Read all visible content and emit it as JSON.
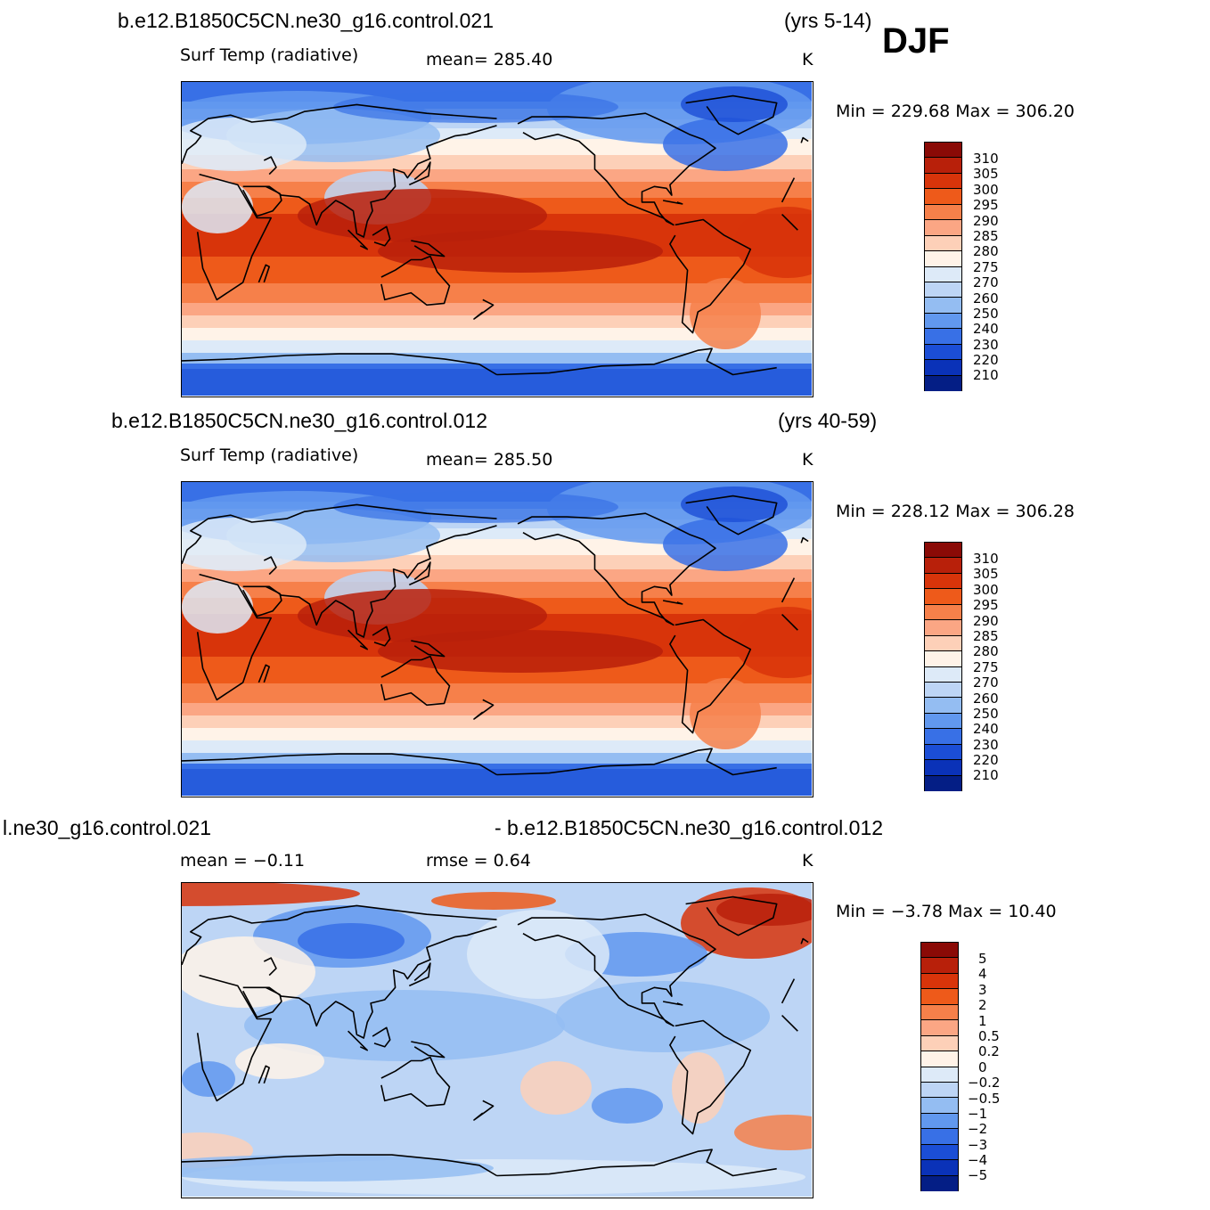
{
  "figure": {
    "season": "DJF"
  },
  "panels": [
    {
      "case_title": "b.e12.B1850C5CN.ne30_g16.control.021",
      "years": "(yrs 5-14)",
      "left_text": "Surf Temp  (radiative)",
      "mid_text": "mean=  285.40",
      "units": "K",
      "minmax": "Min  =  229.68  Max  =  306.20",
      "colorbar_labels": [
        "310",
        "305",
        "300",
        "295",
        "290",
        "285",
        "280",
        "275",
        "270",
        "260",
        "250",
        "240",
        "230",
        "220",
        "210"
      ],
      "colorbar_colors": [
        "#8a0a06",
        "#b8200a",
        "#d8340a",
        "#ee5a1a",
        "#f6804a",
        "#fba684",
        "#fdd0b8",
        "#fff3e8",
        "#ddeaf8",
        "#bdd5f5",
        "#94bdf2",
        "#6198ee",
        "#3870e6",
        "#1b4ed6",
        "#0a32b8",
        "#041e85"
      ],
      "map_scheme": "temperature"
    },
    {
      "case_title": "b.e12.B1850C5CN.ne30_g16.control.012",
      "years": "(yrs 40-59)",
      "left_text": "Surf Temp  (radiative)",
      "mid_text": "mean=  285.50",
      "units": "K",
      "minmax": "Min  =  228.12  Max  =  306.28",
      "colorbar_labels": [
        "310",
        "305",
        "300",
        "295",
        "290",
        "285",
        "280",
        "275",
        "270",
        "260",
        "250",
        "240",
        "230",
        "220",
        "210"
      ],
      "colorbar_colors": [
        "#8a0a06",
        "#b8200a",
        "#d8340a",
        "#ee5a1a",
        "#f6804a",
        "#fba684",
        "#fdd0b8",
        "#fff3e8",
        "#ddeaf8",
        "#bdd5f5",
        "#94bdf2",
        "#6198ee",
        "#3870e6",
        "#1b4ed6",
        "#0a32b8",
        "#041e85"
      ],
      "map_scheme": "temperature"
    },
    {
      "case_title": "l.ne30_g16.control.021",
      "case_title_right": "- b.e12.B1850C5CN.ne30_g16.control.012",
      "left_text": "mean  =    −0.11",
      "mid_text": "rmse  =     0.64",
      "units": "K",
      "minmax": "Min  =    −3.78  Max  =    10.40",
      "colorbar_labels": [
        "5",
        "4",
        "3",
        "2",
        "1",
        "0.5",
        "0.2",
        "0",
        "−0.2",
        "−0.5",
        "−1",
        "−2",
        "−3",
        "−4",
        "−5"
      ],
      "colorbar_colors": [
        "#8a0a06",
        "#b8200a",
        "#d8340a",
        "#ee5a1a",
        "#f6804a",
        "#fba684",
        "#fdd0b8",
        "#fff3e8",
        "#ddeaf8",
        "#bdd5f5",
        "#94bdf2",
        "#6198ee",
        "#3870e6",
        "#1b4ed6",
        "#0a32b8",
        "#041e85"
      ],
      "map_scheme": "difference"
    }
  ]
}
